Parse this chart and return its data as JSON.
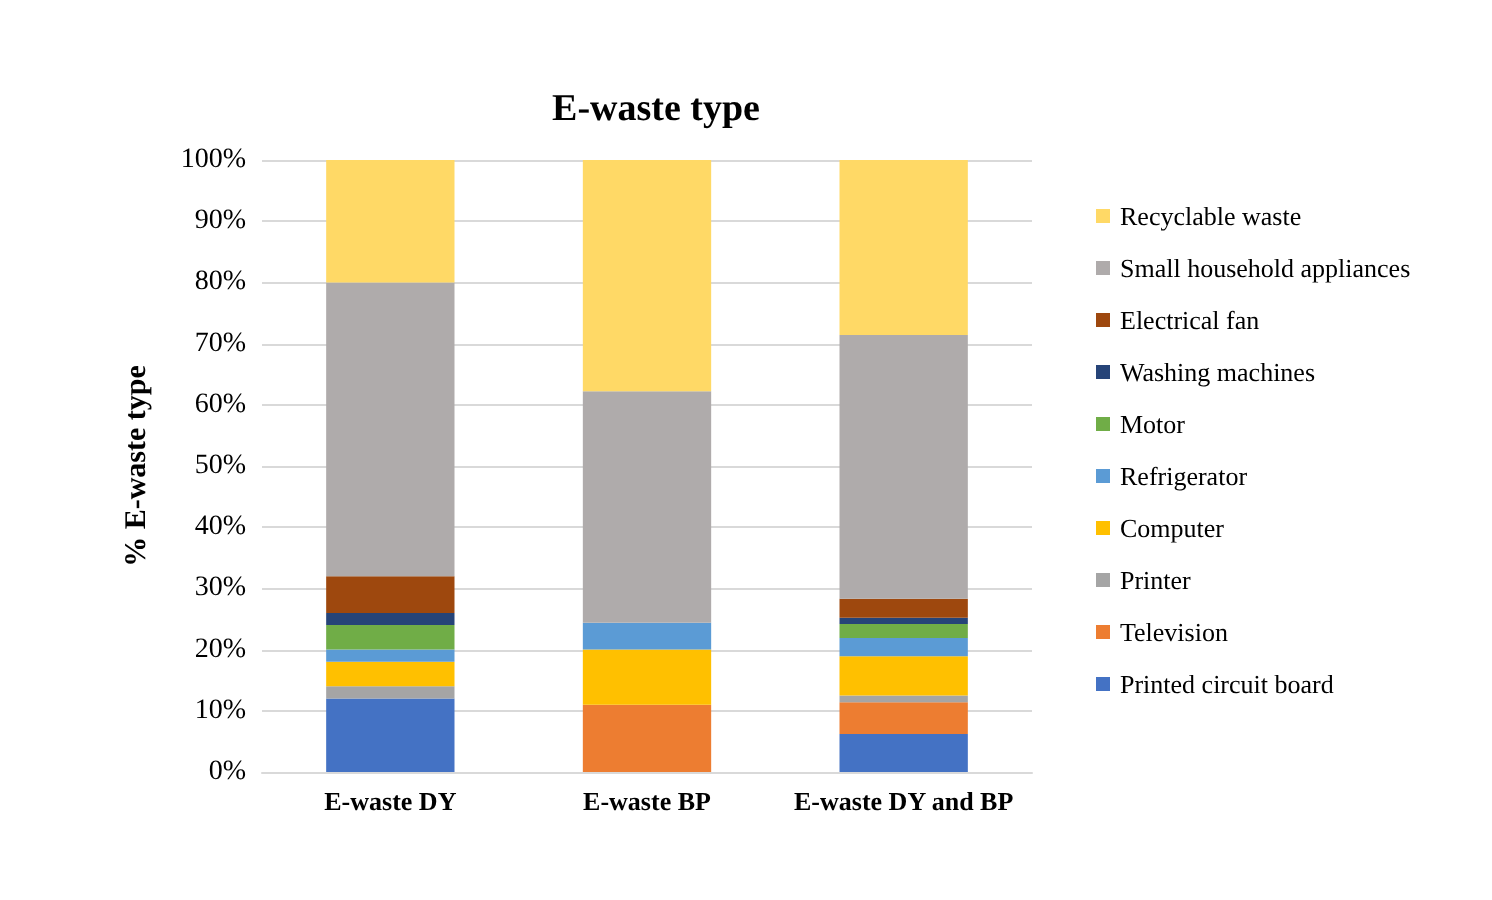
{
  "chart_data": {
    "type": "bar",
    "title": "E-waste type",
    "ylabel": "% E-waste type",
    "categories": [
      "E-waste DY",
      "E-waste BP",
      "E-waste DY and BP"
    ],
    "stacked": true,
    "ylim": [
      0,
      100
    ],
    "yticks": [
      {
        "value": 0,
        "label": "0%"
      },
      {
        "value": 10,
        "label": "10%"
      },
      {
        "value": 20,
        "label": "20%"
      },
      {
        "value": 30,
        "label": "30%"
      },
      {
        "value": 40,
        "label": "40%"
      },
      {
        "value": 50,
        "label": "50%"
      },
      {
        "value": 60,
        "label": "60%"
      },
      {
        "value": 70,
        "label": "70%"
      },
      {
        "value": 80,
        "label": "80%"
      },
      {
        "value": 90,
        "label": "90%"
      },
      {
        "value": 100,
        "label": "100%"
      }
    ],
    "grid": "y",
    "legend": "right",
    "series": [
      {
        "name": "Printed circuit board",
        "color": "#4472c4",
        "values": [
          12,
          0,
          6.2
        ]
      },
      {
        "name": "Television",
        "color": "#ed7d31",
        "values": [
          0,
          11,
          5.2
        ]
      },
      {
        "name": "Printer",
        "color": "#a5a5a5",
        "values": [
          2,
          0,
          1.1
        ]
      },
      {
        "name": "Computer",
        "color": "#ffc000",
        "values": [
          4,
          9,
          6.4
        ]
      },
      {
        "name": "Refrigerator",
        "color": "#5b9bd5",
        "values": [
          2,
          4.4,
          3
        ]
      },
      {
        "name": "Motor",
        "color": "#70ad47",
        "values": [
          4,
          0,
          2.3
        ]
      },
      {
        "name": "Washing machines",
        "color": "#264478",
        "values": [
          2,
          0,
          1
        ]
      },
      {
        "name": "Electrical fan",
        "color": "#9e480e",
        "values": [
          6,
          0,
          3.1
        ]
      },
      {
        "name": "Small household appliances",
        "color": "#afabab",
        "values": [
          48,
          37.8,
          43.1
        ]
      },
      {
        "name": "Recyclable waste",
        "color": "#ffd966",
        "values": [
          20,
          37.8,
          28.6
        ]
      }
    ]
  }
}
